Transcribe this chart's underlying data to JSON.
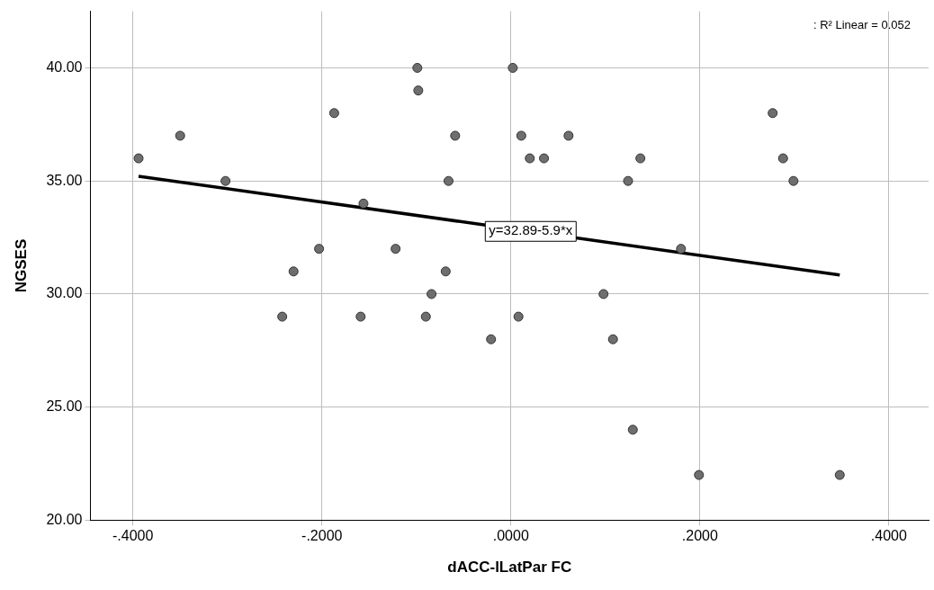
{
  "chart_data": {
    "type": "scatter",
    "xlabel": "dACC-lLatPar FC",
    "ylabel": "NGSES",
    "xlim": [
      -0.445,
      0.442
    ],
    "ylim": [
      20,
      42.5
    ],
    "xticks": [
      {
        "value": -0.4,
        "label": "-.4000"
      },
      {
        "value": -0.2,
        "label": "-.2000"
      },
      {
        "value": 0,
        "label": ".0000"
      },
      {
        "value": 0.2,
        "label": ".2000"
      },
      {
        "value": 0.4,
        "label": ".4000"
      }
    ],
    "yticks": [
      {
        "value": 20,
        "label": "20.00"
      },
      {
        "value": 25,
        "label": "25.00"
      },
      {
        "value": 30,
        "label": "30.00"
      },
      {
        "value": 35,
        "label": "35.00"
      },
      {
        "value": 40,
        "label": "40.00"
      }
    ],
    "grid": true,
    "legend": false,
    "marker": "circle",
    "series": [
      {
        "type": "scatter",
        "color": "#6e6e6e",
        "x": [
          -0.394,
          -0.35,
          -0.302,
          -0.242,
          -0.23,
          -0.203,
          -0.187,
          -0.156,
          -0.159,
          -0.122,
          -0.099,
          -0.098,
          -0.09,
          -0.084,
          -0.069,
          -0.066,
          -0.059,
          -0.021,
          0.002,
          0.008,
          0.011,
          0.02,
          0.035,
          0.061,
          0.098,
          0.108,
          0.124,
          0.129,
          0.137,
          0.18,
          0.199,
          0.277,
          0.288,
          0.299,
          0.348
        ],
        "values": [
          36,
          37,
          35,
          29,
          31,
          32,
          38,
          34,
          29,
          32,
          40,
          39,
          29,
          30,
          31,
          35,
          37,
          28,
          40,
          29,
          37,
          36,
          36,
          37,
          30,
          28,
          35,
          24,
          36,
          32,
          22,
          38,
          36,
          35,
          22
        ]
      },
      {
        "type": "line",
        "color": "#000000",
        "line_style": "solid",
        "marker": "none",
        "x": [
          -0.394,
          0.348
        ],
        "values": [
          35.21,
          30.84
        ]
      }
    ],
    "annotations": [
      {
        "text": "y=32.89-5.9*x",
        "x": 0,
        "y": 32.89
      },
      ": R² Linear = 0.052"
    ]
  }
}
